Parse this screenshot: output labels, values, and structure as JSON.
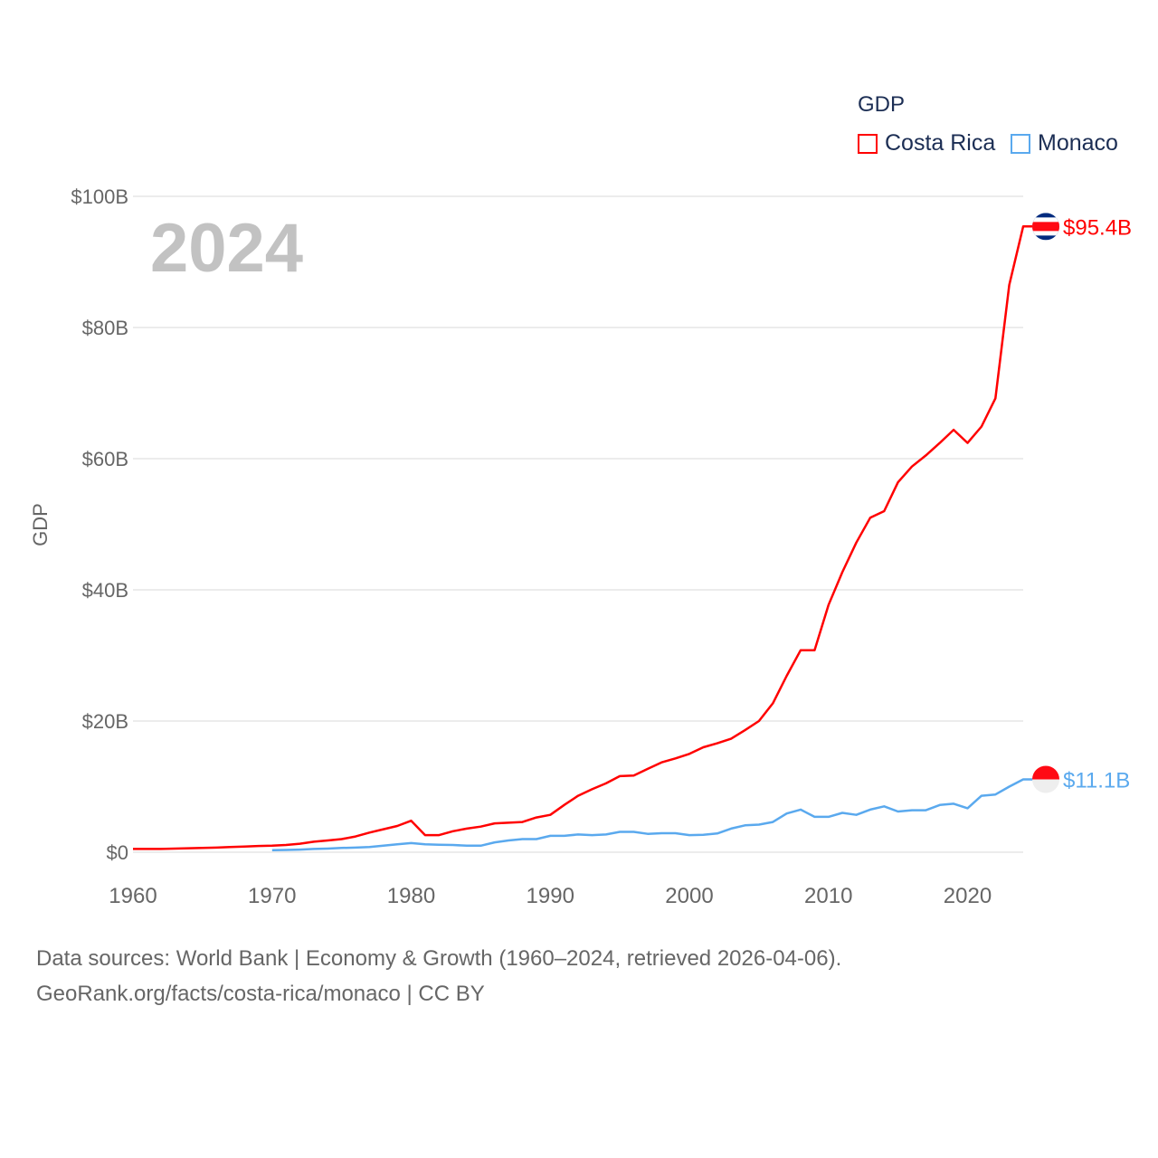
{
  "chart_data": {
    "type": "line",
    "title": "",
    "year_label": "2024",
    "xlabel": "",
    "ylabel": "GDP",
    "xlim": [
      1960,
      2024
    ],
    "ylim": [
      0,
      100
    ],
    "x_ticks": [
      1960,
      1970,
      1980,
      1990,
      2000,
      2010,
      2020
    ],
    "y_ticks": [
      0,
      20,
      40,
      60,
      80,
      100
    ],
    "y_tick_labels": [
      "$0",
      "$20B",
      "$40B",
      "$60B",
      "$80B",
      "$100B"
    ],
    "grid": true,
    "legend": {
      "title": "GDP",
      "position": "top-right",
      "entries": [
        "Costa Rica",
        "Monaco"
      ]
    },
    "series": [
      {
        "name": "Costa Rica",
        "color": "#ff0000",
        "end_label": "$95.4B",
        "start_year": 1960,
        "values": [
          0.5,
          0.5,
          0.5,
          0.55,
          0.6,
          0.65,
          0.7,
          0.8,
          0.85,
          0.95,
          1.0,
          1.1,
          1.3,
          1.6,
          1.8,
          2.0,
          2.4,
          3.0,
          3.5,
          4.0,
          4.8,
          2.6,
          2.6,
          3.2,
          3.6,
          3.9,
          4.4,
          4.5,
          4.6,
          5.3,
          5.7,
          7.2,
          8.6,
          9.6,
          10.5,
          11.6,
          11.7,
          12.7,
          13.7,
          14.3,
          15.0,
          16.0,
          16.6,
          17.3,
          18.6,
          20.0,
          22.7,
          26.9,
          30.8,
          30.8,
          37.7,
          42.7,
          47.2,
          51.0,
          52.0,
          56.4,
          58.8,
          60.5,
          62.4,
          64.4,
          62.4,
          64.9,
          69.2,
          86.5,
          95.4
        ]
      },
      {
        "name": "Monaco",
        "color": "#5aa9ee",
        "end_label": "$11.1B",
        "start_year": 1970,
        "values": [
          0.3,
          0.35,
          0.4,
          0.5,
          0.55,
          0.65,
          0.7,
          0.8,
          1.0,
          1.2,
          1.4,
          1.2,
          1.15,
          1.1,
          1.0,
          1.0,
          1.5,
          1.8,
          2.0,
          2.0,
          2.5,
          2.5,
          2.7,
          2.6,
          2.7,
          3.1,
          3.1,
          2.8,
          2.9,
          2.9,
          2.6,
          2.65,
          2.85,
          3.6,
          4.1,
          4.2,
          4.6,
          5.9,
          6.5,
          5.4,
          5.4,
          6.0,
          5.7,
          6.5,
          7.0,
          6.2,
          6.4,
          6.4,
          7.2,
          7.4,
          6.7,
          8.6,
          8.8,
          10.0,
          11.1
        ]
      }
    ]
  },
  "source": {
    "line1": "Data sources: World Bank | Economy & Growth (1960–2024, retrieved 2026-04-06).",
    "line2": "GeoRank.org/facts/costa-rica/monaco | CC BY"
  }
}
